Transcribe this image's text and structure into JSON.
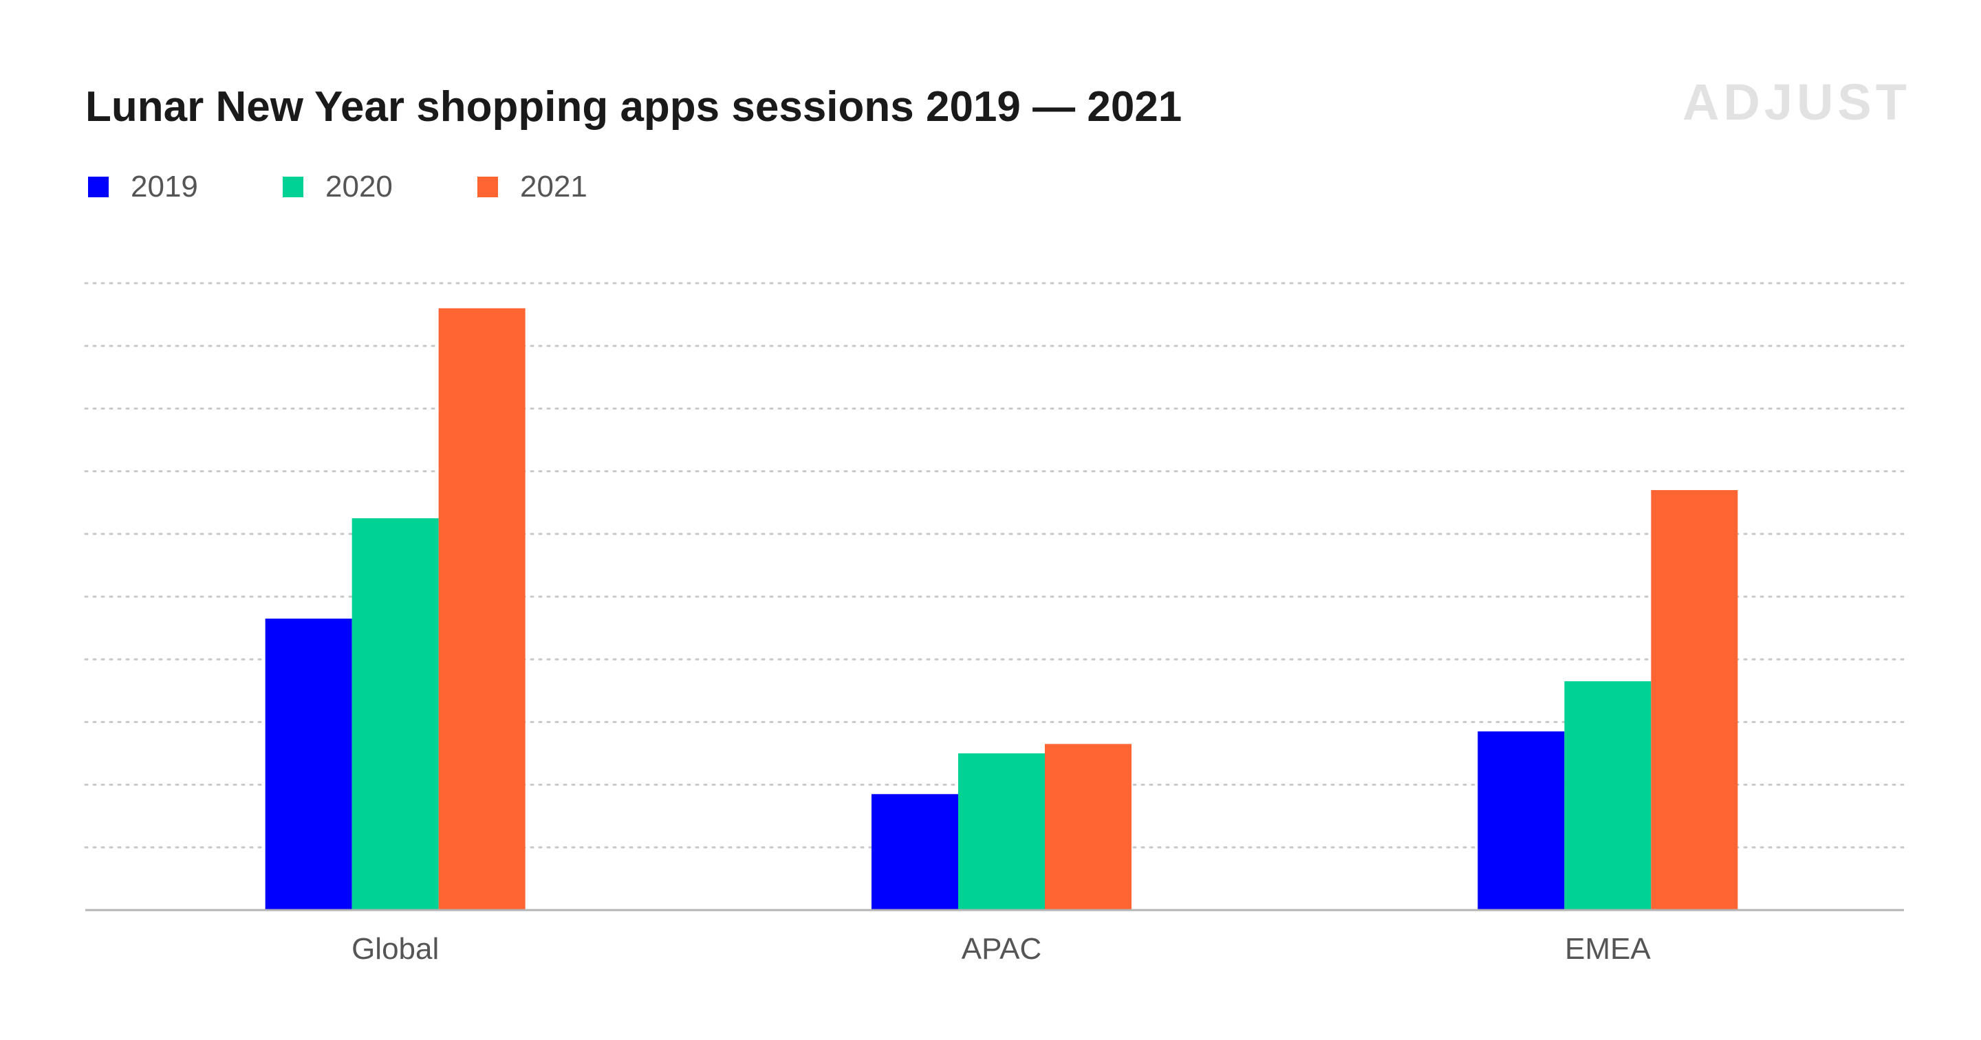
{
  "title": "Lunar New Year shopping apps sessions 2019 — 2021",
  "brand": {
    "logo_text": "ADJUST",
    "logo_color": "#e2e2e2"
  },
  "colors": {
    "title": "#1a1a1a",
    "text": "#555555",
    "grid": "#c8c8c8",
    "baseline": "#b4b4b4"
  },
  "chart_data": {
    "type": "bar",
    "title": "Lunar New Year shopping apps sessions 2019 — 2021",
    "categories": [
      "Global",
      "APAC",
      "EMEA"
    ],
    "series": [
      {
        "name": "2019",
        "color": "#0000ff",
        "values": [
          4.65,
          1.85,
          2.85
        ]
      },
      {
        "name": "2020",
        "color": "#00d296",
        "values": [
          6.25,
          2.5,
          3.65
        ]
      },
      {
        "name": "2021",
        "color": "#ff6433",
        "values": [
          9.6,
          2.65,
          6.7
        ]
      }
    ],
    "ylim": [
      0,
      10
    ],
    "grid": true,
    "y_ticks_labeled": false,
    "legend_position": "top-left",
    "xlabel": "",
    "ylabel": ""
  }
}
